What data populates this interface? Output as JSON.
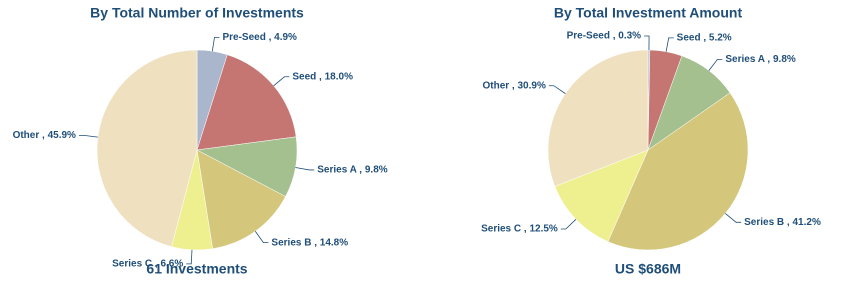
{
  "chart_data": [
    {
      "type": "pie",
      "title": "By Total Number of Investments",
      "footer": "61 Investments",
      "values": [
        4.9,
        18.0,
        9.8,
        14.8,
        6.6,
        45.9
      ],
      "value_labels": [
        "Pre-Seed , 4.9%",
        "Seed , 18.0%",
        "Series A , 9.8%",
        "Series B , 14.8%",
        "Series C , 6.6%",
        "Other , 45.9%"
      ],
      "colors": [
        "#aab6cc",
        "#c57672",
        "#a3c08e",
        "#d4c67a",
        "#eef08f",
        "#efe0c0"
      ]
    },
    {
      "type": "pie",
      "title": "By Total Investment Amount",
      "footer": "US $686M",
      "values": [
        0.3,
        5.2,
        9.8,
        41.2,
        12.5,
        30.9
      ],
      "value_labels": [
        "Pre-Seed , 0.3%",
        "Seed , 5.2%",
        "Series A , 9.8%",
        "Series B , 41.2%",
        "Series C , 12.5%",
        "Other , 30.9%"
      ],
      "colors": [
        "#aab6cc",
        "#c57672",
        "#a3c08e",
        "#d4c67a",
        "#eef08f",
        "#efe0c0"
      ]
    }
  ]
}
